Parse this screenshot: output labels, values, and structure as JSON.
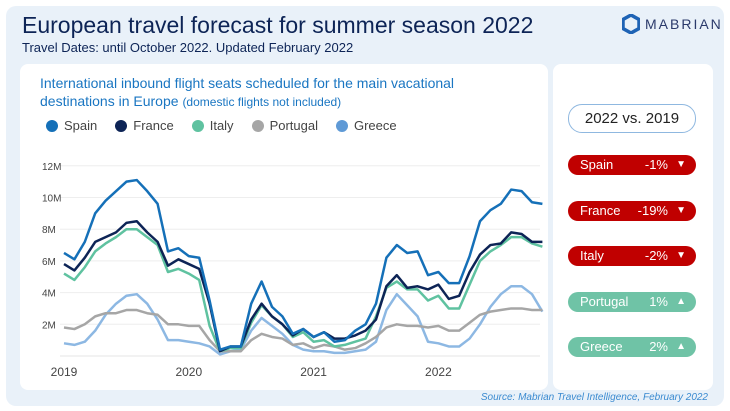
{
  "header": {
    "title": "European travel forecast for summer season 2022",
    "subtitle": "Travel Dates: until October 2022. Updated February 2022",
    "logo": "MABRIAN"
  },
  "comparison": {
    "label": "2022 vs. 2019",
    "items": [
      {
        "name": "Spain",
        "value": "-1%",
        "dir": "▼",
        "color": "#c00000"
      },
      {
        "name": "France",
        "value": "-19%",
        "dir": "▼",
        "color": "#c00000"
      },
      {
        "name": "Italy",
        "value": "-2%",
        "dir": "▼",
        "color": "#c00000"
      },
      {
        "name": "Portugal",
        "value": "1%",
        "dir": "▲",
        "color": "#6fc3a6"
      },
      {
        "name": "Greece",
        "value": "2%",
        "dir": "▲",
        "color": "#6fc3a6"
      }
    ]
  },
  "source": "Source: Mabrian Travel Intelligence, February 2022",
  "chart_data": {
    "type": "line",
    "title": "International inbound flight seats scheduled for the main vacational destinations in Europe",
    "title_note": "(domestic flights not included)",
    "x_start": "2019-01",
    "frequency": "monthly",
    "xticks": [
      "2019",
      "2020",
      "2021",
      "2022"
    ],
    "yticks": [
      "2M",
      "4M",
      "6M",
      "8M",
      "10M",
      "12M"
    ],
    "ylim": [
      0,
      12
    ],
    "yunit": "millions",
    "legend": "top-left",
    "grid": true,
    "series": [
      {
        "name": "Spain",
        "color": "#1570b8",
        "values": [
          6.5,
          6.1,
          7.2,
          9.0,
          9.8,
          10.4,
          11.0,
          11.1,
          10.4,
          9.6,
          6.6,
          6.8,
          6.3,
          6.2,
          3.5,
          0.4,
          0.6,
          0.6,
          3.3,
          4.7,
          3.1,
          2.5,
          1.4,
          1.7,
          1.2,
          1.5,
          0.9,
          1.0,
          1.6,
          2.0,
          3.3,
          6.2,
          7.0,
          6.5,
          6.6,
          5.1,
          5.3,
          4.6,
          4.6,
          6.3,
          8.5,
          9.2,
          9.6,
          10.5,
          10.4,
          9.7,
          9.6
        ]
      },
      {
        "name": "France",
        "color": "#0d2456",
        "values": [
          5.8,
          5.4,
          6.2,
          7.2,
          7.5,
          7.8,
          8.4,
          8.5,
          7.8,
          7.2,
          5.7,
          6.1,
          5.8,
          5.5,
          3.3,
          0.3,
          0.6,
          0.6,
          2.3,
          3.3,
          2.5,
          2.0,
          1.3,
          1.7,
          1.2,
          1.5,
          1.1,
          1.1,
          1.3,
          1.6,
          2.3,
          4.4,
          5.1,
          4.3,
          4.4,
          4.2,
          4.5,
          3.6,
          3.8,
          5.3,
          6.4,
          7.0,
          7.1,
          7.8,
          7.7,
          7.2,
          7.2
        ]
      },
      {
        "name": "Italy",
        "color": "#5fc2a0",
        "values": [
          5.2,
          4.8,
          5.6,
          6.6,
          7.1,
          7.5,
          8.0,
          8.0,
          7.5,
          7.0,
          5.3,
          5.5,
          5.2,
          4.8,
          1.9,
          0.3,
          0.5,
          0.5,
          2.1,
          3.2,
          2.5,
          2.0,
          1.2,
          1.5,
          0.9,
          1.0,
          0.6,
          0.7,
          0.9,
          1.1,
          2.5,
          4.3,
          4.7,
          4.2,
          4.2,
          3.5,
          3.8,
          3.0,
          3.0,
          4.5,
          6.0,
          6.6,
          7.0,
          7.5,
          7.5,
          7.1,
          6.9
        ]
      },
      {
        "name": "Portugal",
        "color": "#a6a6a6",
        "values": [
          1.8,
          1.7,
          2.0,
          2.5,
          2.7,
          2.7,
          2.9,
          2.9,
          2.7,
          2.6,
          2.0,
          2.0,
          1.9,
          1.9,
          1.0,
          0.3,
          0.3,
          0.3,
          1.0,
          1.4,
          1.2,
          1.1,
          0.7,
          0.8,
          0.5,
          0.7,
          0.6,
          0.4,
          0.5,
          0.8,
          1.2,
          1.8,
          2.0,
          1.9,
          1.9,
          1.8,
          1.9,
          1.6,
          1.6,
          2.1,
          2.6,
          2.8,
          2.9,
          3.0,
          3.0,
          2.9,
          2.9
        ]
      },
      {
        "name": "Greece",
        "color": "#8db8e3",
        "legend_color": "#5f9ad6",
        "values": [
          0.8,
          0.7,
          0.9,
          1.6,
          2.6,
          3.3,
          3.8,
          3.9,
          3.3,
          2.3,
          1.0,
          1.0,
          0.9,
          0.8,
          0.6,
          0.1,
          0.3,
          0.4,
          1.6,
          2.4,
          1.9,
          1.4,
          0.7,
          0.4,
          0.3,
          0.3,
          0.2,
          0.2,
          0.3,
          0.4,
          0.9,
          2.9,
          3.9,
          3.2,
          2.5,
          0.9,
          0.8,
          0.6,
          0.6,
          1.1,
          2.0,
          3.1,
          3.9,
          4.4,
          4.4,
          3.9,
          2.8
        ]
      }
    ]
  }
}
